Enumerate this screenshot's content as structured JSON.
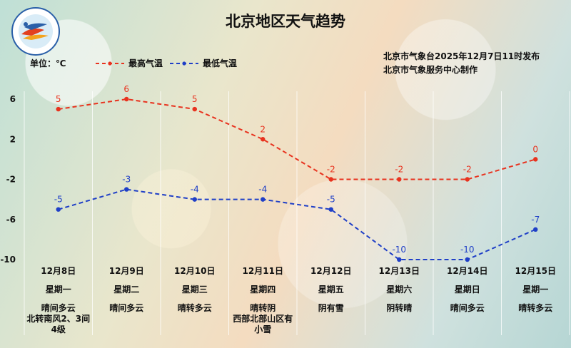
{
  "title": "北京地区天气趋势",
  "unit_label": "单位：℃",
  "legend": {
    "high": "最高气温",
    "low": "最低气温"
  },
  "publisher": {
    "line1": "北京市气象台2025年12月7日11时发布",
    "line2": "北京市气象服务中心制作"
  },
  "colors": {
    "high": "#e8321e",
    "low": "#1f3fc7"
  },
  "logo_icon": "meteorological-service-logo-icon",
  "days": [
    {
      "date": "12月8日",
      "weekday": "星期一",
      "condition": "晴间多云\n北转南风2、3间\n4级"
    },
    {
      "date": "12月9日",
      "weekday": "星期二",
      "condition": "晴间多云"
    },
    {
      "date": "12月10日",
      "weekday": "星期三",
      "condition": "晴转多云"
    },
    {
      "date": "12月11日",
      "weekday": "星期四",
      "condition": "晴转阴\n西部北部山区有\n小雪"
    },
    {
      "date": "12月12日",
      "weekday": "星期五",
      "condition": "阴有雪"
    },
    {
      "date": "12月13日",
      "weekday": "星期六",
      "condition": "阴转晴"
    },
    {
      "date": "12月14日",
      "weekday": "星期日",
      "condition": "晴间多云"
    },
    {
      "date": "12月15日",
      "weekday": "星期一",
      "condition": "晴转多云"
    }
  ],
  "chart_data": {
    "type": "line",
    "title": "北京地区天气趋势",
    "ylabel": "单位：℃",
    "categories": [
      "12月8日",
      "12月9日",
      "12月10日",
      "12月11日",
      "12月12日",
      "12月13日",
      "12月14日",
      "12月15日"
    ],
    "yticks": [
      6,
      2,
      -2,
      -6,
      -10
    ],
    "ylim": [
      -10,
      6
    ],
    "grid": "vertical",
    "legend_position": "top-left",
    "series": [
      {
        "name": "最高气温",
        "values": [
          5,
          6,
          5,
          2,
          -2,
          -2,
          -2,
          0
        ],
        "labels": [
          "5",
          "6",
          "5",
          "2",
          "-2",
          "-2",
          "-2",
          "0"
        ]
      },
      {
        "name": "最低气温",
        "values": [
          -5,
          -3,
          -4,
          -4,
          -5,
          -10,
          -10,
          -7
        ],
        "labels": [
          "-5",
          "-3",
          "-4",
          "-4",
          "-5",
          "-10",
          "-10",
          "-7"
        ]
      }
    ]
  }
}
